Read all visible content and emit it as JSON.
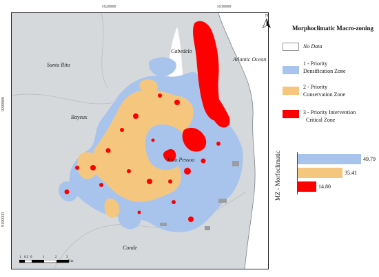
{
  "coordinates": {
    "top": [
      "1620000",
      "1630000"
    ],
    "left": [
      "9200000",
      "9190000"
    ]
  },
  "places": {
    "cabedelo": "Cabedelo",
    "atlantic": "Atlantic Ocean",
    "santa_rita": "Santa Rita",
    "bayeux": "Bayeux",
    "joao_pessoa": "João Pessoa",
    "conde": "Conde"
  },
  "north_label": "N",
  "scale": {
    "labels": [
      "1",
      "0.5",
      "0",
      "1",
      "2",
      "3"
    ],
    "unit": "Km"
  },
  "legend": {
    "title": "Morphoclimatic Macro-zoning",
    "items": [
      {
        "label_lines": [
          "No Data"
        ],
        "italic": true,
        "color": "#ffffff",
        "border": "#999999"
      },
      {
        "label_lines": [
          "1 - Priority",
          "Densification Zone"
        ],
        "color": "#a9c4ec"
      },
      {
        "label_lines": [
          "2 - Priority",
          "Conservation Zone"
        ],
        "color": "#f5c77e"
      },
      {
        "label_lines": [
          "3 - Priority Intervention",
          "Critical Zone"
        ],
        "color": "#ff0000"
      }
    ]
  },
  "colors": {
    "background_land": "#d6d9dc",
    "ocean": "#ffffff",
    "densification": "#a9c4ec",
    "conservation": "#f5c77e",
    "critical": "#ff0000",
    "urban_gray": "#9a9da2"
  },
  "chart_data": {
    "type": "bar",
    "orientation": "horizontal",
    "axis_title": "MZ - Morfoclimatic",
    "categories": [
      "1 - Priority Densification Zone",
      "2 - Priority Conservation Zone",
      "3 - Priority Intervention Critical Zone"
    ],
    "values": [
      49.79,
      35.41,
      14.8
    ],
    "value_labels": [
      "49.79",
      "35.41",
      "14.80"
    ],
    "colors": [
      "#a9c4ec",
      "#f5c77e",
      "#ff0000"
    ]
  }
}
